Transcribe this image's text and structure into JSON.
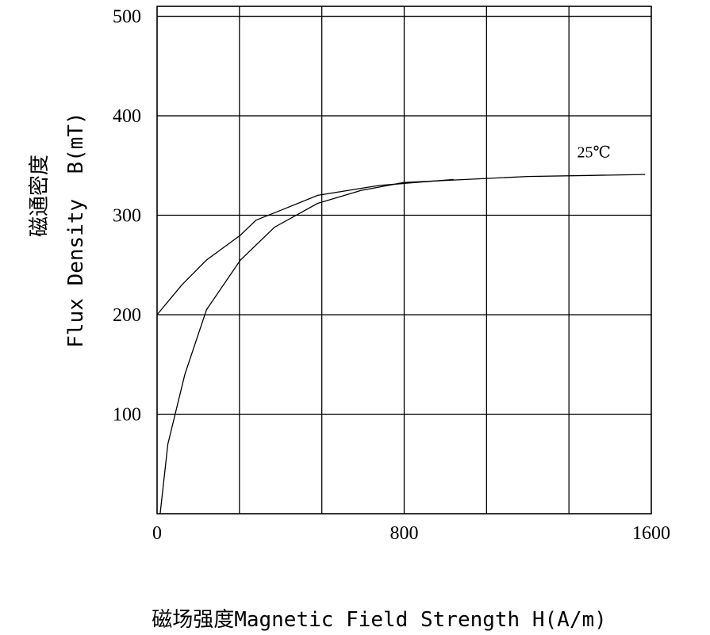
{
  "chart_data": {
    "type": "line",
    "xlabel": "磁场强度Magnetic Field Strength H(A/m)",
    "ylabel_cn": "磁通密度",
    "ylabel": "Flux Density  B(mT)",
    "xlim": [
      0,
      1600
    ],
    "ylim": [
      0,
      510
    ],
    "x_ticks": [
      {
        "value": 0,
        "label": "0"
      },
      {
        "value": 800,
        "label": "800"
      },
      {
        "value": 1600,
        "label": "1600"
      }
    ],
    "y_ticks": [
      {
        "value": 100,
        "label": "100"
      },
      {
        "value": 200,
        "label": "200"
      },
      {
        "value": 300,
        "label": "300"
      },
      {
        "value": 400,
        "label": "400"
      },
      {
        "value": 500,
        "label": "500"
      }
    ],
    "x_grid_step": 266.67,
    "y_grid_step": 100,
    "grid": true,
    "annotation": {
      "text": "25℃",
      "x": 1360,
      "y": 358
    },
    "series": [
      {
        "values": [
          [
            10,
            0
          ],
          [
            35,
            70
          ],
          [
            90,
            140
          ],
          [
            160,
            205
          ],
          [
            270,
            255
          ],
          [
            380,
            288
          ],
          [
            520,
            312
          ],
          [
            660,
            325
          ],
          [
            800,
            333
          ],
          [
            1000,
            336
          ],
          [
            1200,
            339
          ],
          [
            1400,
            340
          ],
          [
            1580,
            341
          ]
        ]
      },
      {
        "values": [
          [
            0,
            200
          ],
          [
            80,
            230
          ],
          [
            160,
            255
          ],
          [
            270,
            280
          ],
          [
            320,
            295
          ],
          [
            400,
            305
          ],
          [
            520,
            320
          ],
          [
            720,
            330
          ],
          [
            800,
            332
          ],
          [
            960,
            336
          ]
        ]
      }
    ]
  }
}
